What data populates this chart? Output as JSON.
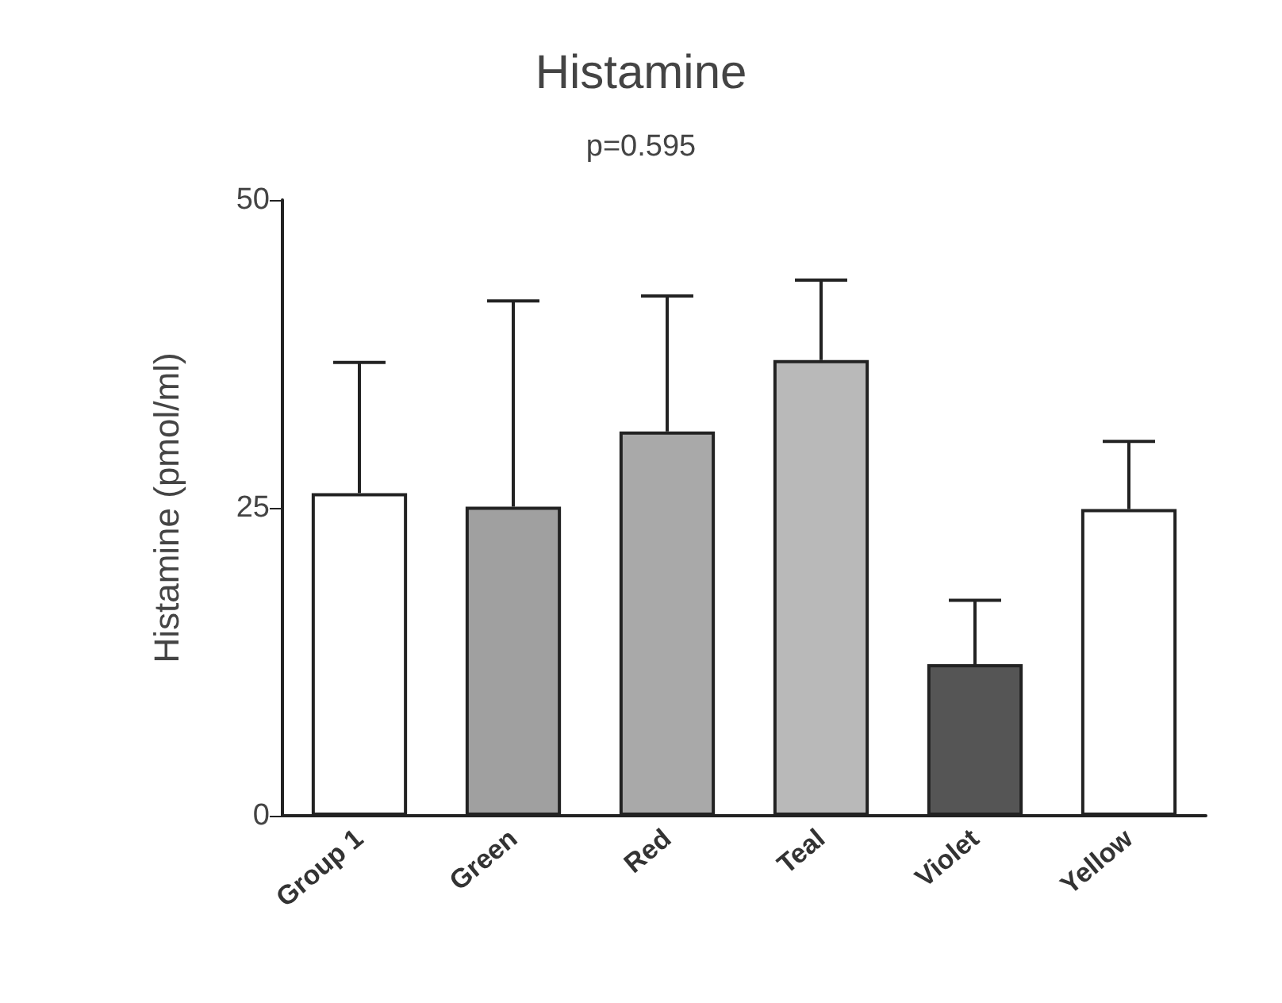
{
  "chart_data": {
    "type": "bar",
    "title": "Histamine",
    "annotations": [
      "p=0.595"
    ],
    "ylabel": "Histamine (pmol/ml)",
    "categories": [
      "Group 1",
      "Green",
      "Red",
      "Teal",
      "Violet",
      "Yellow"
    ],
    "values": [
      26.2,
      25.1,
      31.2,
      37.0,
      12.3,
      24.9
    ],
    "colors": [
      "#ffffff",
      "#a0a0a0",
      "#a9a9a9",
      "#b9b9b9",
      "#555555",
      "#ffffff"
    ],
    "errors": [
      [
        26.2,
        36.8
      ],
      [
        25.1,
        41.8
      ],
      [
        31.2,
        42.2
      ],
      [
        37.0,
        43.5
      ],
      [
        12.3,
        17.5
      ],
      [
        24.9,
        30.4
      ]
    ],
    "ylim": [
      0,
      50
    ],
    "yticks": [
      0,
      25,
      50
    ],
    "grid": false
  }
}
